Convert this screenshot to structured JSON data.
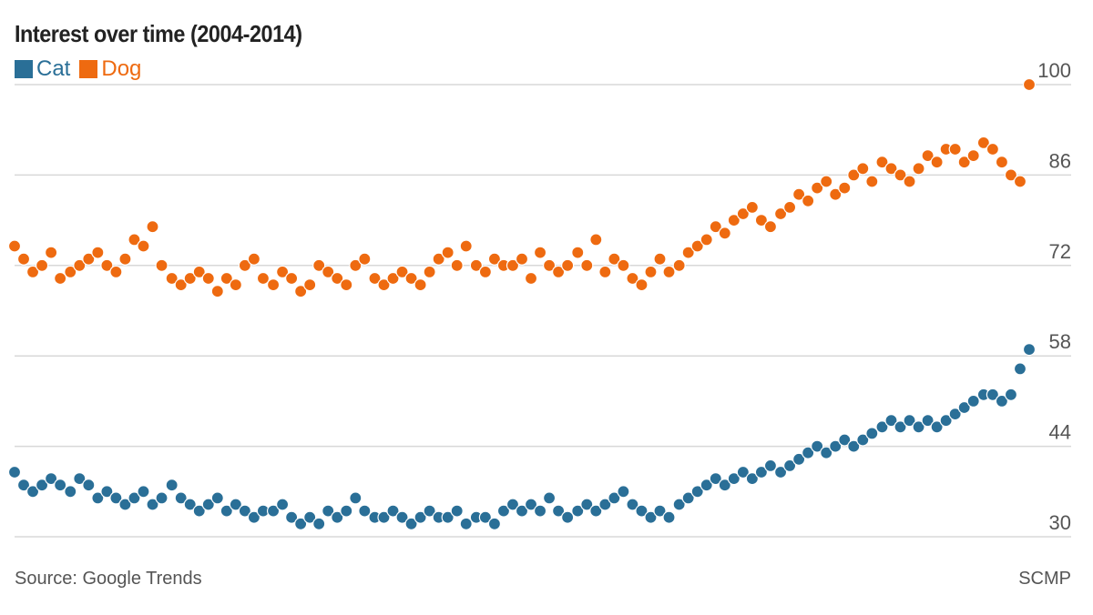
{
  "header": {
    "title": "Interest over time (2004-2014)"
  },
  "footer": {
    "source": "Source: Google Trends",
    "credit": "SCMP"
  },
  "colors": {
    "cat": "#2a6f97",
    "dog": "#ee6a10",
    "grid": "#d8d8d8",
    "tick_text": "#555555"
  },
  "chart_data": {
    "type": "scatter",
    "title": "Interest over time (2004-2014)",
    "xlabel": "",
    "ylabel": "",
    "x_range": [
      2004,
      2014
    ],
    "ylim": [
      30,
      100
    ],
    "yticks": [
      30,
      44,
      58,
      72,
      86,
      100
    ],
    "grid": true,
    "y_axis_side": "right",
    "legend": "top-left",
    "series": [
      {
        "name": "Cat",
        "color": "#2a6f97",
        "x": [
          2004.0,
          2004.09,
          2004.18,
          2004.27,
          2004.36,
          2004.45,
          2004.55,
          2004.64,
          2004.73,
          2004.82,
          2004.91,
          2005.0,
          2005.09,
          2005.18,
          2005.27,
          2005.36,
          2005.45,
          2005.55,
          2005.64,
          2005.73,
          2005.82,
          2005.91,
          2006.0,
          2006.09,
          2006.18,
          2006.27,
          2006.36,
          2006.45,
          2006.55,
          2006.64,
          2006.73,
          2006.82,
          2006.91,
          2007.0,
          2007.09,
          2007.18,
          2007.27,
          2007.36,
          2007.45,
          2007.55,
          2007.64,
          2007.73,
          2007.82,
          2007.91,
          2008.0,
          2008.09,
          2008.18,
          2008.27,
          2008.36,
          2008.45,
          2008.55,
          2008.64,
          2008.73,
          2008.82,
          2008.91,
          2009.0,
          2009.09,
          2009.18,
          2009.27,
          2009.36,
          2009.45,
          2009.55,
          2009.64,
          2009.73,
          2009.82,
          2009.91,
          2010.0,
          2010.09,
          2010.18,
          2010.27,
          2010.36,
          2010.45,
          2010.55,
          2010.64,
          2010.73,
          2010.82,
          2010.91,
          2011.0,
          2011.09,
          2011.18,
          2011.27,
          2011.36,
          2011.45,
          2011.55,
          2011.64,
          2011.73,
          2011.82,
          2011.91,
          2012.0,
          2012.09,
          2012.18,
          2012.27,
          2012.36,
          2012.45,
          2012.55,
          2012.64,
          2012.73,
          2012.82,
          2012.91,
          2013.0,
          2013.09,
          2013.18,
          2013.27,
          2013.36,
          2013.45,
          2013.55,
          2013.64,
          2013.73,
          2013.82,
          2013.91,
          2014.0
        ],
        "values": [
          40,
          38,
          37,
          38,
          39,
          38,
          37,
          39,
          38,
          36,
          37,
          36,
          35,
          36,
          37,
          35,
          36,
          38,
          36,
          35,
          34,
          35,
          36,
          34,
          35,
          34,
          33,
          34,
          34,
          35,
          33,
          32,
          33,
          32,
          34,
          33,
          34,
          36,
          34,
          33,
          33,
          34,
          33,
          32,
          33,
          34,
          33,
          33,
          34,
          32,
          33,
          33,
          32,
          34,
          35,
          34,
          35,
          34,
          36,
          34,
          33,
          34,
          35,
          34,
          35,
          36,
          37,
          35,
          34,
          33,
          34,
          33,
          35,
          36,
          37,
          38,
          39,
          38,
          39,
          40,
          39,
          40,
          41,
          40,
          41,
          42,
          43,
          44,
          43,
          44,
          45,
          44,
          45,
          46,
          47,
          48,
          47,
          48,
          47,
          48,
          47,
          48,
          49,
          50,
          51,
          52,
          52,
          51,
          52,
          56,
          59
        ]
      },
      {
        "name": "Dog",
        "color": "#ee6a10",
        "x": [
          2004.0,
          2004.09,
          2004.18,
          2004.27,
          2004.36,
          2004.45,
          2004.55,
          2004.64,
          2004.73,
          2004.82,
          2004.91,
          2005.0,
          2005.09,
          2005.18,
          2005.27,
          2005.36,
          2005.45,
          2005.55,
          2005.64,
          2005.73,
          2005.82,
          2005.91,
          2006.0,
          2006.09,
          2006.18,
          2006.27,
          2006.36,
          2006.45,
          2006.55,
          2006.64,
          2006.73,
          2006.82,
          2006.91,
          2007.0,
          2007.09,
          2007.18,
          2007.27,
          2007.36,
          2007.45,
          2007.55,
          2007.64,
          2007.73,
          2007.82,
          2007.91,
          2008.0,
          2008.09,
          2008.18,
          2008.27,
          2008.36,
          2008.45,
          2008.55,
          2008.64,
          2008.73,
          2008.82,
          2008.91,
          2009.0,
          2009.09,
          2009.18,
          2009.27,
          2009.36,
          2009.45,
          2009.55,
          2009.64,
          2009.73,
          2009.82,
          2009.91,
          2010.0,
          2010.09,
          2010.18,
          2010.27,
          2010.36,
          2010.45,
          2010.55,
          2010.64,
          2010.73,
          2010.82,
          2010.91,
          2011.0,
          2011.09,
          2011.18,
          2011.27,
          2011.36,
          2011.45,
          2011.55,
          2011.64,
          2011.73,
          2011.82,
          2011.91,
          2012.0,
          2012.09,
          2012.18,
          2012.27,
          2012.36,
          2012.45,
          2012.55,
          2012.64,
          2012.73,
          2012.82,
          2012.91,
          2013.0,
          2013.09,
          2013.18,
          2013.27,
          2013.36,
          2013.45,
          2013.55,
          2013.64,
          2013.73,
          2013.82,
          2013.91,
          2014.0
        ],
        "values": [
          75,
          73,
          71,
          72,
          74,
          70,
          71,
          72,
          73,
          74,
          72,
          71,
          73,
          76,
          75,
          78,
          72,
          70,
          69,
          70,
          71,
          70,
          68,
          70,
          69,
          72,
          73,
          70,
          69,
          71,
          70,
          68,
          69,
          72,
          71,
          70,
          69,
          72,
          73,
          70,
          69,
          70,
          71,
          70,
          69,
          71,
          73,
          74,
          72,
          75,
          72,
          71,
          73,
          72,
          72,
          73,
          70,
          74,
          72,
          71,
          72,
          74,
          72,
          76,
          71,
          73,
          72,
          70,
          69,
          71,
          73,
          71,
          72,
          74,
          75,
          76,
          78,
          77,
          79,
          80,
          81,
          79,
          78,
          80,
          81,
          83,
          82,
          84,
          85,
          83,
          84,
          86,
          87,
          85,
          88,
          87,
          86,
          85,
          87,
          89,
          88,
          90,
          90,
          88,
          89,
          91,
          90,
          88,
          86,
          85,
          100
        ]
      }
    ]
  }
}
